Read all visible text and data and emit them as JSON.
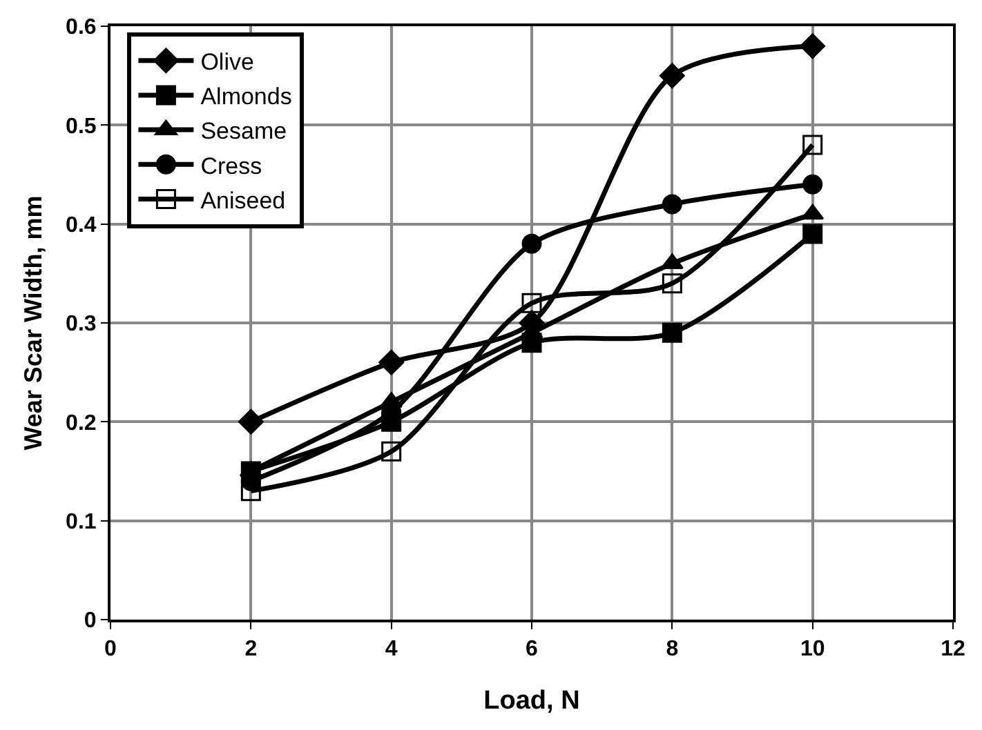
{
  "chart_data": {
    "type": "line",
    "xlabel": "Load, N",
    "ylabel": "Wear Scar Width, mm",
    "x": [
      2,
      4,
      6,
      8,
      10
    ],
    "series": [
      {
        "name": "Olive",
        "color": "#000000",
        "marker": "diamond",
        "values": [
          0.2,
          0.26,
          0.3,
          0.55,
          0.58
        ]
      },
      {
        "name": "Almonds",
        "color": "#000000",
        "marker": "square",
        "values": [
          0.15,
          0.2,
          0.28,
          0.29,
          0.39
        ]
      },
      {
        "name": "Sesame",
        "color": "#000000",
        "marker": "triangle",
        "values": [
          0.15,
          0.22,
          0.29,
          0.36,
          0.41
        ]
      },
      {
        "name": "Cress",
        "color": "#000000",
        "marker": "circle",
        "values": [
          0.14,
          0.21,
          0.38,
          0.42,
          0.44
        ]
      },
      {
        "name": "Aniseed",
        "color": "#000000",
        "marker": "square-open",
        "values": [
          0.13,
          0.17,
          0.32,
          0.34,
          0.48
        ]
      }
    ],
    "xlim": [
      0,
      12
    ],
    "xticks": [
      0,
      2,
      4,
      6,
      8,
      10,
      12
    ],
    "ylim": [
      0,
      0.6
    ],
    "yticks": [
      0,
      0.1,
      0.2,
      0.3,
      0.4,
      0.5,
      0.6
    ],
    "grid": true,
    "legend": "top left",
    "line_style": "solid"
  }
}
